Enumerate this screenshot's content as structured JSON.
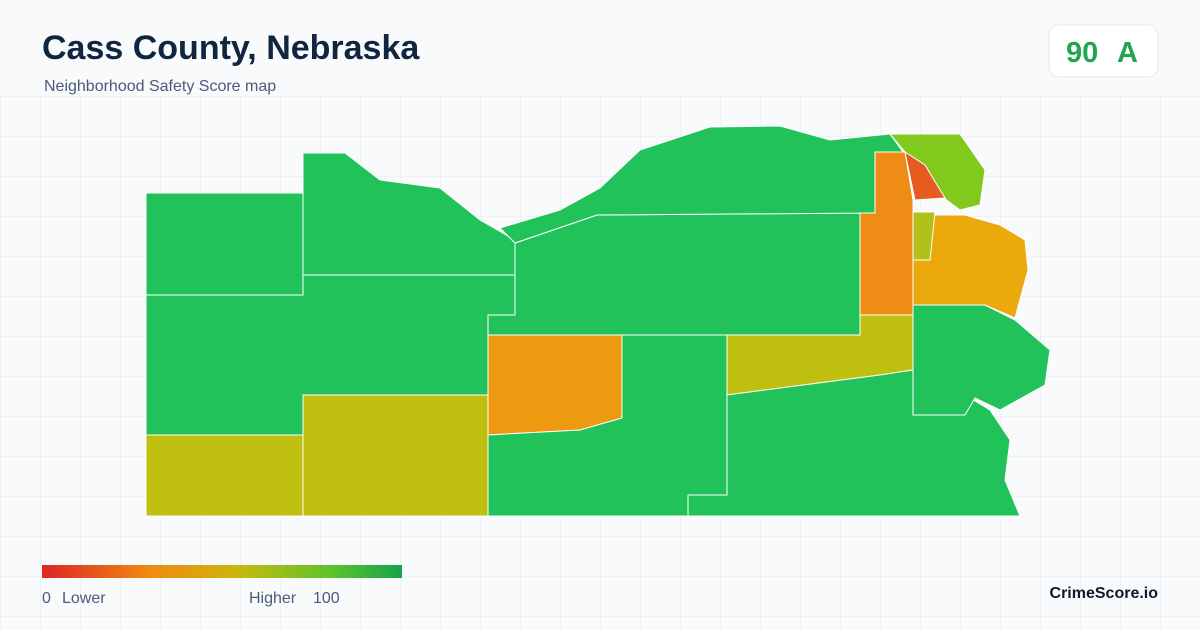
{
  "header": {
    "title": "Cass County, Nebraska",
    "subtitle": "Neighborhood Safety Score map"
  },
  "badge": {
    "score": 90,
    "grade": "A"
  },
  "legend": {
    "min": 0,
    "min_label": "Lower",
    "max_label": "Higher",
    "max": 100
  },
  "footer": {
    "brand": "CrimeScore.io"
  }
}
